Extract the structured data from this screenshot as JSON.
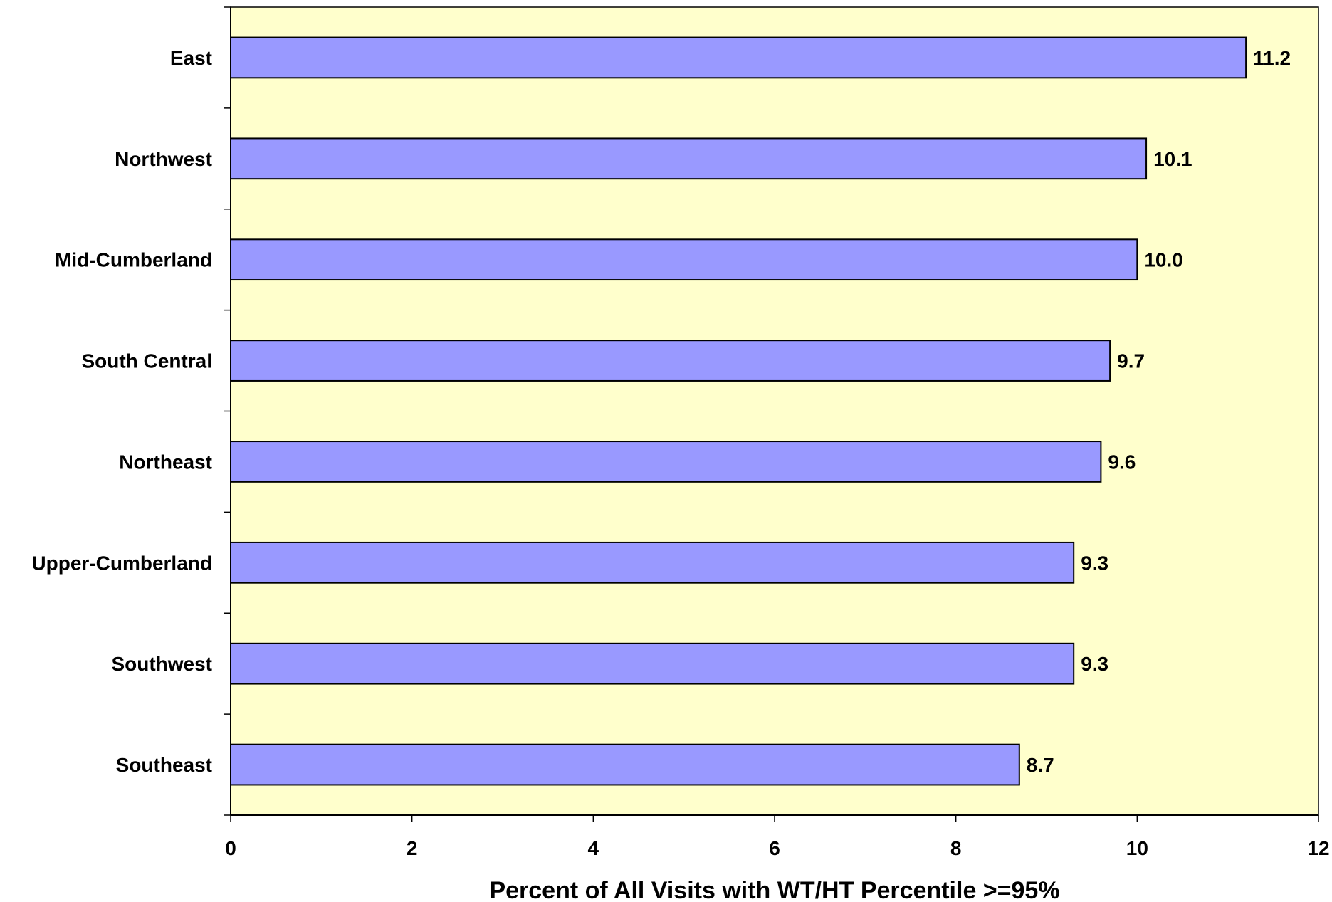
{
  "chart_data": {
    "type": "bar",
    "orientation": "horizontal",
    "categories": [
      "East",
      "Northwest",
      "Mid-Cumberland",
      "South Central",
      "Northeast",
      "Upper-Cumberland",
      "Southwest",
      "Southeast"
    ],
    "values": [
      11.2,
      10.1,
      10.0,
      9.7,
      9.6,
      9.3,
      9.3,
      8.7
    ],
    "value_labels": [
      "11.2",
      "10.1",
      "10.0",
      "9.7",
      "9.6",
      "9.3",
      "9.3",
      "8.7"
    ],
    "title": "",
    "xlabel": "Percent of All Visits with WT/HT Percentile >=95%",
    "ylabel": "",
    "xlim": [
      0,
      12
    ],
    "xticks": [
      0,
      2,
      4,
      6,
      8,
      10,
      12
    ],
    "grid": false,
    "legend": "none",
    "colors": {
      "bar_fill": "#9999ff",
      "bar_stroke": "#000000",
      "plot_background": "#ffffcc",
      "axis": "#000000"
    }
  }
}
